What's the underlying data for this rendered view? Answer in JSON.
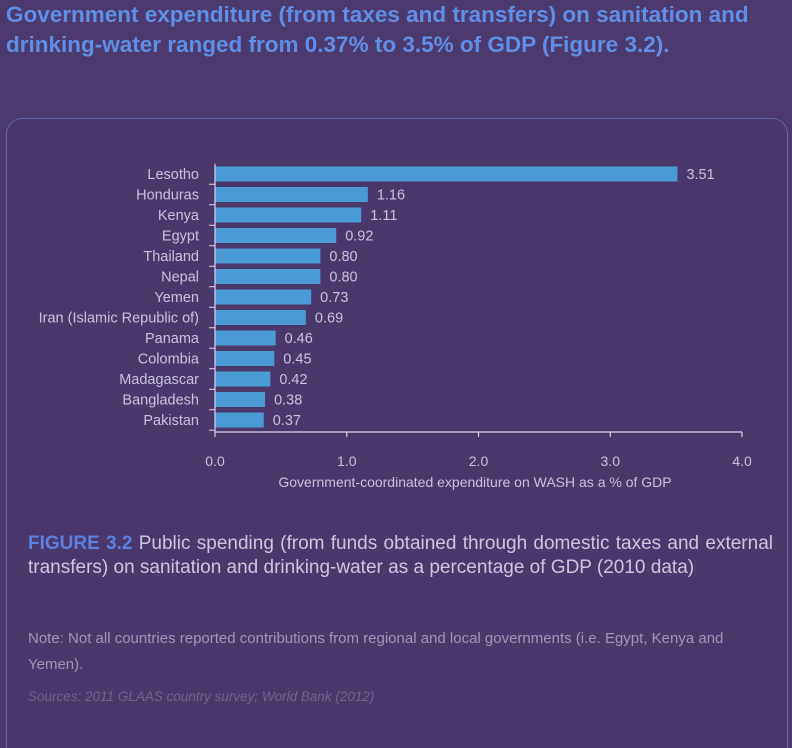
{
  "headline": "Government expenditure (from taxes and transfers) on sanitation and drinking-water ranged from 0.37% to 3.5% of GDP (Figure 3.2).",
  "caption": {
    "figure_label": "FIGURE 3.2",
    "text": " Public spending (from funds obtained through domestic taxes and external transfers) on sanitation and drinking-water as a percentage of GDP (2010 data)"
  },
  "note": "Note: Not all countries reported contributions from regional and local governments (i.e. Egypt, Kenya and Yemen).",
  "sources": "Sources: 2011 GLAAS country survey; World Bank (2012)",
  "colors": {
    "bar": "#4a9ad6",
    "axis": "#d8d3e6",
    "text": "#c9c2da"
  },
  "chart_data": {
    "type": "bar",
    "orientation": "horizontal",
    "categories": [
      "Lesotho",
      "Honduras",
      "Kenya",
      "Egypt",
      "Thailand",
      "Nepal",
      "Yemen",
      "Iran (Islamic Republic of)",
      "Panama",
      "Colombia",
      "Madagascar",
      "Bangladesh",
      "Pakistan"
    ],
    "values": [
      3.51,
      1.16,
      1.11,
      0.92,
      0.8,
      0.8,
      0.73,
      0.69,
      0.46,
      0.45,
      0.42,
      0.38,
      0.37
    ],
    "value_labels": [
      "3.51",
      "1.16",
      "1.11",
      "0.92",
      "0.80",
      "0.80",
      "0.73",
      "0.69",
      "0.46",
      "0.45",
      "0.42",
      "0.38",
      "0.37"
    ],
    "xlabel": "Government-coordinated expenditure on WASH as a % of GDP",
    "ylabel": "",
    "xlim": [
      0,
      4.0
    ],
    "xticks": [
      "0.0",
      "1.0",
      "2.0",
      "3.0",
      "4.0"
    ],
    "xtick_values": [
      0,
      1,
      2,
      3,
      4
    ],
    "grid": false
  }
}
